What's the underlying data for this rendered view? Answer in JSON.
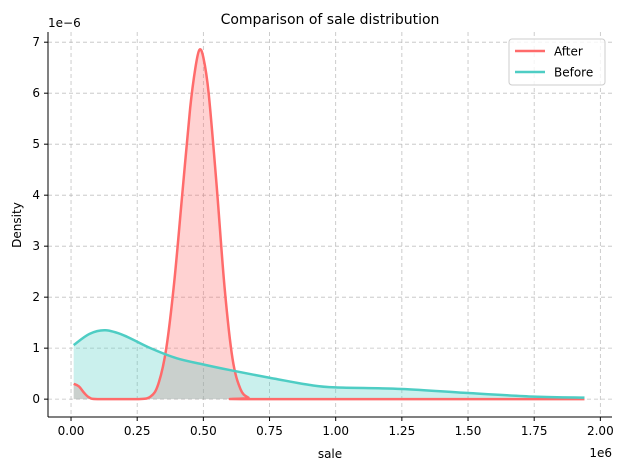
{
  "chart_data": {
    "type": "area",
    "title": "Comparison of sale distribution",
    "xlabel": "sale",
    "ylabel": "Density",
    "x_offset_label": "1e6",
    "y_offset_label": "1e−6",
    "xlim": [
      -87000,
      2044000
    ],
    "ylim": [
      -3.5e-07,
      7.2e-06
    ],
    "x_ticks": [
      0,
      250000,
      500000,
      750000,
      1000000,
      1250000,
      1500000,
      1750000,
      2000000
    ],
    "x_tick_labels": [
      "0.00",
      "0.25",
      "0.50",
      "0.75",
      "1.00",
      "1.25",
      "1.50",
      "1.75",
      "2.00"
    ],
    "y_ticks": [
      0,
      1e-06,
      2e-06,
      3e-06,
      4e-06,
      5e-06,
      6e-06,
      7e-06
    ],
    "y_tick_labels": [
      "0",
      "1",
      "2",
      "3",
      "4",
      "5",
      "6",
      "7"
    ],
    "grid": true,
    "legend_position": "top-right",
    "series": [
      {
        "name": "After",
        "color": "#ff6b6b",
        "x": [
          10000,
          30000,
          50000,
          70000,
          100000,
          250000,
          300000,
          330000,
          360000,
          390000,
          420000,
          450000,
          470000,
          485000,
          500000,
          520000,
          550000,
          580000,
          610000,
          640000,
          670000,
          700000,
          1940000
        ],
        "y": [
          3e-07,
          2.5e-07,
          1.2e-07,
          3e-08,
          0,
          0,
          5e-08,
          3e-07,
          1e-06,
          2.3e-06,
          4e-06,
          5.7e-06,
          6.5e-06,
          6.85e-06,
          6.7e-06,
          6e-06,
          4.2e-06,
          2.2e-06,
          8e-07,
          2e-07,
          3e-08,
          0,
          0
        ]
      },
      {
        "name": "Before",
        "color": "#4ecdc4",
        "x": [
          10000,
          70000,
          130000,
          200000,
          300000,
          400000,
          500000,
          600000,
          750000,
          900000,
          1000000,
          1250000,
          1500000,
          1750000,
          1940000
        ],
        "y": [
          1.06e-06,
          1.28e-06,
          1.35e-06,
          1.25e-06,
          1e-06,
          8e-07,
          6.8e-07,
          5.7e-07,
          4.2e-07,
          2.8e-07,
          2.3e-07,
          2e-07,
          1.2e-07,
          5e-08,
          3e-08
        ]
      }
    ]
  }
}
